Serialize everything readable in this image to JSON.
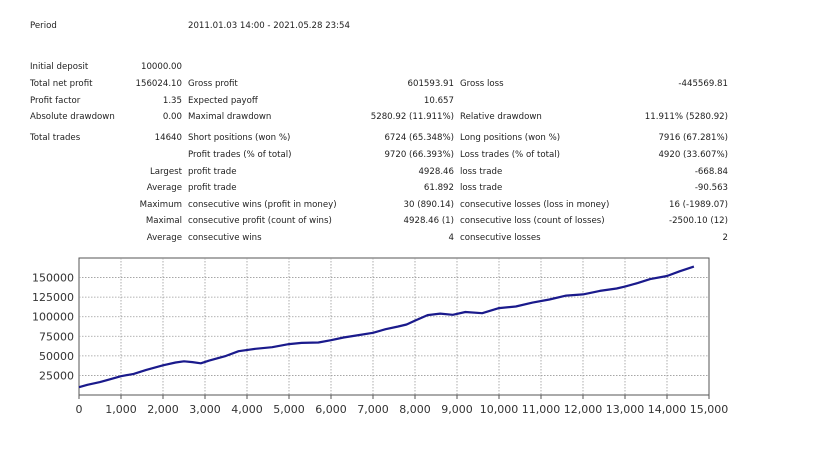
{
  "report": {
    "period_label": "Period",
    "period_value": "2011.01.03 14:00 - 2021.05.28 23:54",
    "initial_deposit_label": "Initial deposit",
    "initial_deposit": "10000.00",
    "rows": [
      {
        "l1": "Total net profit",
        "v1": "156024.10",
        "l2": "Gross profit",
        "v2": "601593.91",
        "l3": "Gross loss",
        "v3": "-445569.81"
      },
      {
        "l1": "Profit factor",
        "v1": "1.35",
        "l2": "Expected payoff",
        "v2": "10.657",
        "l3": "",
        "v3": ""
      },
      {
        "l1": "Absolute drawdown",
        "v1": "0.00",
        "l2": "Maximal drawdown",
        "v2": "5280.92 (11.911%)",
        "l3": "Relative drawdown",
        "v3": "11.911% (5280.92)"
      }
    ],
    "trades": [
      {
        "l1": "Total trades",
        "v1": "14640",
        "l2": "Short positions (won %)",
        "v2": "6724 (65.348%)",
        "l3": "Long positions (won %)",
        "v3": "7916 (67.281%)"
      },
      {
        "l1": "",
        "v1": "",
        "l2": "Profit trades (% of total)",
        "v2": "9720 (66.393%)",
        "l3": "Loss trades (% of total)",
        "v3": "4920 (33.607%)"
      },
      {
        "l1": "",
        "v1": "Largest",
        "l2": "profit trade",
        "v2": "4928.46",
        "l3": "loss trade",
        "v3": "-668.84"
      },
      {
        "l1": "",
        "v1": "Average",
        "l2": "profit trade",
        "v2": "61.892",
        "l3": "loss trade",
        "v3": "-90.563"
      },
      {
        "l1": "",
        "v1": "Maximum",
        "l2": "consecutive wins (profit in money)",
        "v2": "30 (890.14)",
        "l3": "consecutive losses (loss in money)",
        "v3": "16 (-1989.07)"
      },
      {
        "l1": "",
        "v1": "Maximal",
        "l2": "consecutive profit (count of wins)",
        "v2": "4928.46 (1)",
        "l3": "consecutive loss (count of losses)",
        "v3": "-2500.10 (12)"
      },
      {
        "l1": "",
        "v1": "Average",
        "l2": "consecutive wins",
        "v2": "4",
        "l3": "consecutive losses",
        "v3": "2"
      }
    ]
  },
  "chart_data": {
    "type": "line",
    "title": "",
    "xlabel": "",
    "ylabel": "",
    "xlim": [
      0,
      15000
    ],
    "ylim": [
      0,
      175000
    ],
    "grid": true,
    "xticks": [
      0,
      1000,
      2000,
      3000,
      4000,
      5000,
      6000,
      7000,
      8000,
      9000,
      10000,
      11000,
      12000,
      13000,
      14000,
      15000
    ],
    "xtick_labels": [
      "0",
      "1,000",
      "2,000",
      "3,000",
      "4,000",
      "5,000",
      "6,000",
      "7,000",
      "8,000",
      "9,000",
      "10,000",
      "11,000",
      "12,000",
      "13,000",
      "14,000",
      "15,000"
    ],
    "yticks": [
      25000,
      50000,
      75000,
      100000,
      125000,
      150000
    ],
    "ytick_labels": [
      "25000",
      "50000",
      "75000",
      "100000",
      "125000",
      "150000"
    ],
    "line_color": "#1a1a8c",
    "series": [
      {
        "x": [
          0,
          200,
          500,
          800,
          1000,
          1300,
          1600,
          2000,
          2300,
          2500,
          2700,
          2900,
          3100,
          3500,
          3800,
          4200,
          4600,
          5000,
          5300,
          5700,
          6000,
          6300,
          6600,
          7000,
          7300,
          7600,
          7800,
          8000,
          8300,
          8600,
          8900,
          9200,
          9600,
          10000,
          10400,
          10800,
          11200,
          11600,
          12000,
          12400,
          12800,
          13000,
          13300,
          13600,
          14000,
          14300,
          14640
        ],
        "y": [
          10000,
          13000,
          16500,
          21000,
          24000,
          27000,
          32000,
          38000,
          41500,
          43000,
          42000,
          40500,
          44000,
          50000,
          56000,
          59000,
          61000,
          65000,
          66500,
          67000,
          70000,
          73500,
          76000,
          79500,
          84000,
          87500,
          90000,
          95000,
          102000,
          104000,
          102500,
          106000,
          104500,
          111000,
          113000,
          118000,
          122000,
          127000,
          128500,
          133000,
          136000,
          138500,
          143000,
          148000,
          152000,
          158000,
          164000
        ]
      }
    ]
  }
}
